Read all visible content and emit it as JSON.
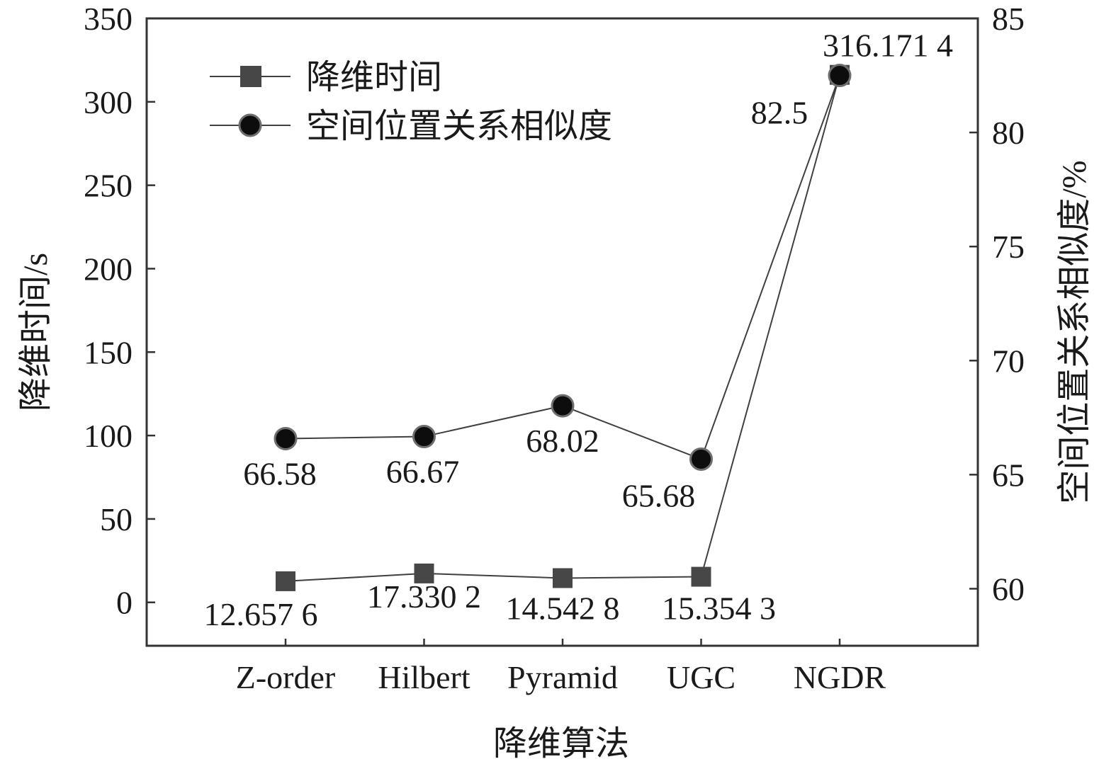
{
  "chart_data": {
    "type": "line",
    "xlabel": "降维算法",
    "ylabel": "降维时间/s",
    "y2label": "空间位置关系相似度/%",
    "categories": [
      "Z-order",
      "Hilbert",
      "Pyramid",
      "UGC",
      "NGDR"
    ],
    "ylim": [
      -26,
      350
    ],
    "yticks": [
      0,
      50,
      100,
      150,
      200,
      250,
      300,
      350
    ],
    "y2lim": [
      57.5,
      85
    ],
    "y2ticks": [
      60,
      65,
      70,
      75,
      80,
      85
    ],
    "legend_position": "top-left",
    "series": [
      {
        "name": "降维时间",
        "axis": "left",
        "marker": "square",
        "color": "#474747",
        "values": [
          12.6576,
          17.3302,
          14.5428,
          15.3543,
          316.1714
        ],
        "labels": [
          "12.657 6",
          "17.330 2",
          "14.542 8",
          "15.354 3",
          "316.171 4"
        ]
      },
      {
        "name": "空间位置关系相似度",
        "axis": "right",
        "marker": "circle",
        "color": "#0d0d0d",
        "values": [
          66.58,
          66.67,
          68.02,
          65.68,
          82.5
        ],
        "labels": [
          "66.58",
          "66.67",
          "68.02",
          "65.68",
          "82.5"
        ]
      }
    ]
  }
}
